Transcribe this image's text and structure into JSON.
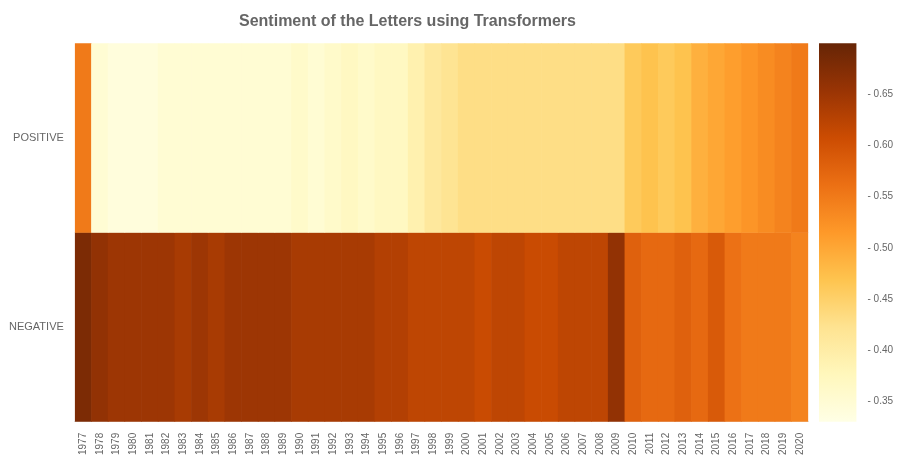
{
  "chart_data": {
    "type": "heatmap",
    "title": "Sentiment of the Letters using Transformers",
    "categories": [
      1977,
      1978,
      1979,
      1980,
      1981,
      1982,
      1983,
      1984,
      1985,
      1986,
      1987,
      1988,
      1989,
      1990,
      1991,
      1992,
      1993,
      1994,
      1995,
      1996,
      1997,
      1998,
      1999,
      2000,
      2001,
      2002,
      2003,
      2004,
      2005,
      2006,
      2007,
      2008,
      2009,
      2010,
      2011,
      2012,
      2013,
      2014,
      2015,
      2016,
      2017,
      2018,
      2019,
      2020
    ],
    "rows": [
      "POSITIVE",
      "NEGATIVE"
    ],
    "values": [
      [
        0.55,
        0.35,
        0.34,
        0.34,
        0.34,
        0.35,
        0.35,
        0.35,
        0.35,
        0.35,
        0.35,
        0.35,
        0.35,
        0.36,
        0.35,
        0.36,
        0.37,
        0.36,
        0.37,
        0.37,
        0.39,
        0.41,
        0.42,
        0.43,
        0.43,
        0.43,
        0.43,
        0.43,
        0.43,
        0.43,
        0.43,
        0.43,
        0.43,
        0.46,
        0.47,
        0.46,
        0.47,
        0.49,
        0.5,
        0.51,
        0.52,
        0.53,
        0.54,
        0.55
      ],
      [
        0.68,
        0.66,
        0.65,
        0.65,
        0.65,
        0.65,
        0.64,
        0.65,
        0.64,
        0.65,
        0.65,
        0.65,
        0.65,
        0.64,
        0.64,
        0.64,
        0.64,
        0.64,
        0.63,
        0.63,
        0.62,
        0.62,
        0.62,
        0.62,
        0.61,
        0.62,
        0.62,
        0.61,
        0.61,
        0.62,
        0.62,
        0.62,
        0.66,
        0.58,
        0.57,
        0.57,
        0.58,
        0.57,
        0.59,
        0.56,
        0.55,
        0.55,
        0.55,
        0.54
      ]
    ],
    "colorbar": {
      "range": [
        0.33,
        0.7
      ],
      "ticks": [
        {
          "value": 0.35,
          "label": "- 0.35"
        },
        {
          "value": 0.4,
          "label": "- 0.40"
        },
        {
          "value": 0.45,
          "label": "- 0.45"
        },
        {
          "value": 0.5,
          "label": "- 0.50"
        },
        {
          "value": 0.55,
          "label": "- 0.55"
        },
        {
          "value": 0.6,
          "label": "- 0.60"
        },
        {
          "value": 0.65,
          "label": "- 0.65"
        }
      ],
      "colors": [
        "#ffffe5",
        "#fff7bc",
        "#fee391",
        "#fec44f",
        "#fe9929",
        "#ec7014",
        "#cc4c02",
        "#993404",
        "#662506"
      ]
    },
    "grid": false
  }
}
